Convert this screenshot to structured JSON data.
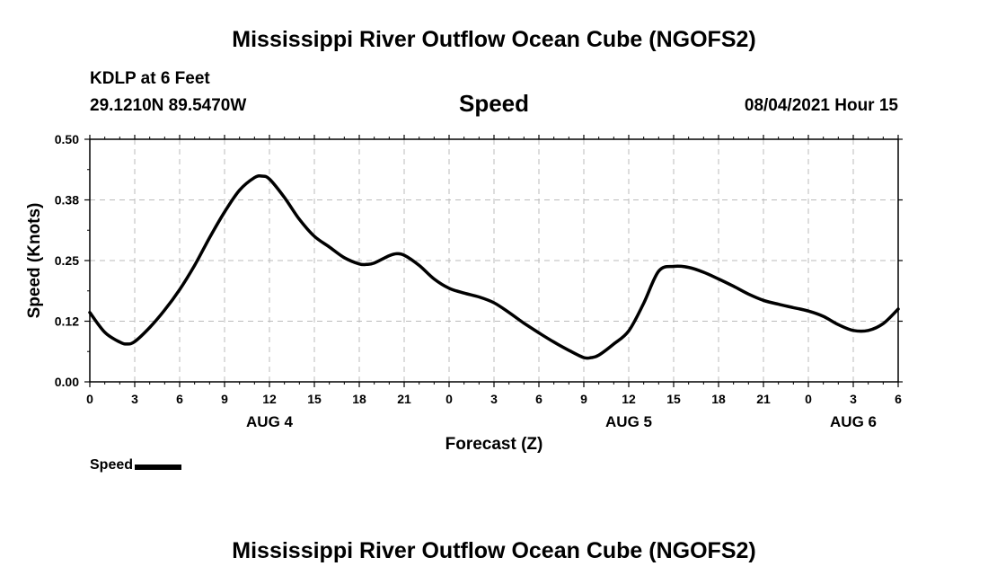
{
  "page": {
    "title_top": "Mississippi River Outflow Ocean Cube (NGOFS2)",
    "title_bottom": "Mississippi River Outflow Ocean Cube (NGOFS2)",
    "station_name": "KDLP at 6 Feet",
    "station_coords": "29.1210N  89.5470W",
    "datetime": "08/04/2021 Hour 15",
    "line_color": "#000000",
    "grid_color": "#bbbbbb"
  },
  "chart_data": {
    "type": "line",
    "title": "Speed",
    "xlabel": "Forecast (Z)",
    "ylabel": "Speed (Knots)",
    "grid": true,
    "legend_position": "bottom-left",
    "xlim": [
      0,
      54
    ],
    "ylim": [
      0,
      0.5
    ],
    "x_ticks": [
      0,
      3,
      6,
      9,
      12,
      15,
      18,
      21,
      24,
      27,
      30,
      33,
      36,
      39,
      42,
      45,
      48,
      51,
      54
    ],
    "x_tick_labels": [
      "0",
      "3",
      "6",
      "9",
      "12",
      "15",
      "18",
      "21",
      "0",
      "3",
      "6",
      "9",
      "12",
      "15",
      "18",
      "21",
      "0",
      "3",
      "6"
    ],
    "y_ticks": [
      0,
      0.125,
      0.25,
      0.375,
      0.5
    ],
    "y_tick_labels": [
      "0.00",
      "0.12",
      "0.25",
      "0.38",
      "0.50"
    ],
    "date_labels": [
      {
        "x": 12,
        "label": "AUG 4"
      },
      {
        "x": 36,
        "label": "AUG 5"
      },
      {
        "x": 51,
        "label": "AUG 6"
      }
    ],
    "series": [
      {
        "name": "Speed",
        "x": [
          0,
          1,
          2,
          2.5,
          3,
          4,
          5,
          6,
          7,
          8,
          9,
          10,
          11,
          11.5,
          12,
          13,
          14,
          15,
          16,
          17,
          18,
          18.5,
          19,
          20,
          20.5,
          21,
          22,
          23,
          24,
          25,
          26,
          27,
          28,
          29,
          30,
          31,
          32,
          33,
          33.5,
          34,
          35,
          36,
          37,
          38,
          39,
          40,
          41,
          42,
          43,
          44,
          45,
          46,
          47,
          48,
          49,
          50,
          51,
          52,
          53,
          54
        ],
        "values": [
          0.143,
          0.102,
          0.082,
          0.078,
          0.083,
          0.112,
          0.148,
          0.19,
          0.24,
          0.297,
          0.35,
          0.395,
          0.421,
          0.424,
          0.418,
          0.38,
          0.335,
          0.3,
          0.278,
          0.256,
          0.243,
          0.242,
          0.245,
          0.26,
          0.264,
          0.261,
          0.24,
          0.212,
          0.193,
          0.183,
          0.175,
          0.163,
          0.143,
          0.121,
          0.101,
          0.082,
          0.065,
          0.05,
          0.05,
          0.055,
          0.078,
          0.105,
          0.162,
          0.228,
          0.238,
          0.236,
          0.226,
          0.212,
          0.197,
          0.181,
          0.168,
          0.16,
          0.153,
          0.146,
          0.135,
          0.118,
          0.106,
          0.106,
          0.12,
          0.15
        ]
      }
    ]
  }
}
